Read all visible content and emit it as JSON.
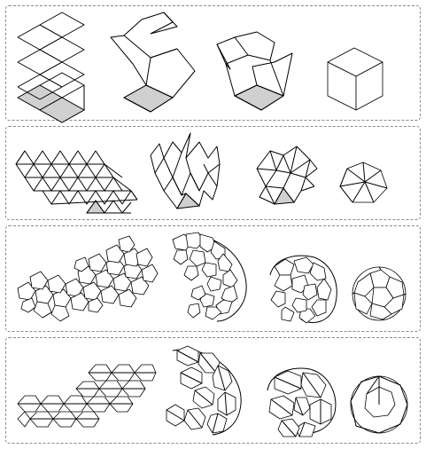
{
  "figure": {
    "rows": [
      {
        "polyhedron": "cube",
        "stages": [
          "flat-net",
          "partially-folded",
          "nearly-folded",
          "folded"
        ]
      },
      {
        "polyhedron": "icosahedron",
        "stages": [
          "flat-net",
          "partially-folded",
          "nearly-folded",
          "folded"
        ]
      },
      {
        "polyhedron": "rhombicosidodecahedron-like",
        "stages": [
          "flat-net",
          "partially-folded",
          "nearly-folded",
          "folded"
        ]
      },
      {
        "polyhedron": "geodesic-triangulated",
        "stages": [
          "flat-net",
          "partially-folded",
          "nearly-folded",
          "folded"
        ]
      }
    ],
    "colors": {
      "stroke": "#000000",
      "highlight_face": "#d0d0d0",
      "panel_border": "#8a8a8a",
      "background": "#ffffff"
    }
  }
}
